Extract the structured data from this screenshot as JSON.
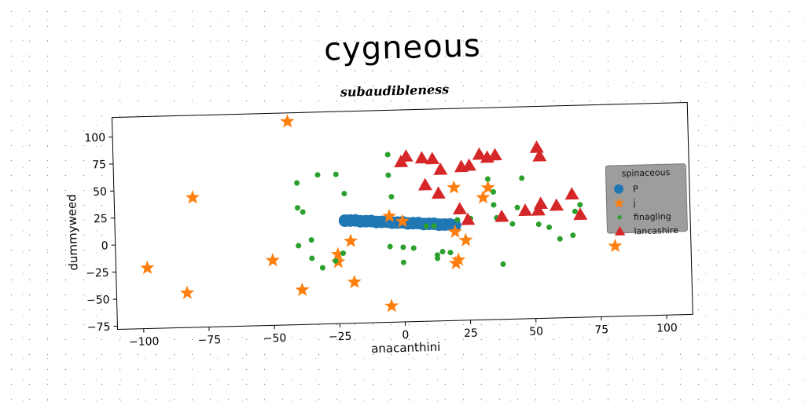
{
  "title": "cygneous",
  "subtitle": "subaudibleness",
  "chart_data": {
    "type": "scatter",
    "xlabel": "anacanthini",
    "ylabel": "dummyweed",
    "xlim": [
      -110,
      110
    ],
    "ylim": [
      -78,
      118
    ],
    "xticks": [
      -100,
      -75,
      -50,
      -25,
      0,
      25,
      50,
      75,
      100
    ],
    "yticks": [
      -75,
      -50,
      -25,
      0,
      25,
      50,
      75,
      100
    ],
    "xtick_labels": [
      "−100",
      "−75",
      "−50",
      "−25",
      "0",
      "25",
      "50",
      "75",
      "100"
    ],
    "ytick_labels": [
      "−75",
      "−50",
      "−25",
      "0",
      "25",
      "50",
      "75",
      "100"
    ],
    "grid": false,
    "legend": {
      "title": "spinaceous",
      "placement": "right"
    },
    "series": [
      {
        "name": "P",
        "marker": "circle-large",
        "color": "#1f77b4",
        "points": [
          [
            -22,
            17
          ],
          [
            -20,
            17
          ],
          [
            -18,
            17
          ],
          [
            -16,
            16
          ],
          [
            -14,
            16
          ],
          [
            -12,
            16
          ],
          [
            -10,
            15
          ],
          [
            -8,
            15
          ],
          [
            -6,
            15
          ],
          [
            -4,
            14
          ],
          [
            -2,
            14
          ],
          [
            0,
            14
          ],
          [
            2,
            13
          ],
          [
            4,
            13
          ],
          [
            6,
            13
          ],
          [
            8,
            12
          ],
          [
            10,
            12
          ],
          [
            12,
            12
          ],
          [
            14,
            11
          ],
          [
            16,
            11
          ],
          [
            18,
            11
          ],
          [
            20,
            10
          ]
        ]
      },
      {
        "name": "j",
        "marker": "star",
        "color": "#ff7f0e",
        "points": [
          [
            -43,
            110
          ],
          [
            -80,
            42
          ],
          [
            -98,
            -22
          ],
          [
            -83,
            -46
          ],
          [
            -50,
            -18
          ],
          [
            -39,
            -46
          ],
          [
            -25,
            -14
          ],
          [
            -25,
            -21
          ],
          [
            -19,
            -40
          ],
          [
            -20,
            -2
          ],
          [
            -5,
            20
          ],
          [
            -5,
            -63
          ],
          [
            0,
            15
          ],
          [
            20,
            4
          ],
          [
            20,
            -25
          ],
          [
            21,
            -22
          ],
          [
            24,
            -4
          ],
          [
            20,
            45
          ],
          [
            31,
            35
          ],
          [
            33,
            44
          ],
          [
            81,
            -13
          ]
        ]
      },
      {
        "name": "finagling",
        "marker": "circle-small",
        "color": "#2ca02c",
        "points": [
          [
            -40,
            53
          ],
          [
            -32,
            60
          ],
          [
            -25,
            60
          ],
          [
            -22,
            42
          ],
          [
            -40,
            30
          ],
          [
            -38,
            26
          ],
          [
            -40,
            -5
          ],
          [
            -35,
            0
          ],
          [
            -35,
            -17
          ],
          [
            -31,
            -26
          ],
          [
            -26,
            -20
          ],
          [
            -23,
            -13
          ],
          [
            -4,
            38
          ],
          [
            -5,
            77
          ],
          [
            -5,
            58
          ],
          [
            -5,
            -8
          ],
          [
            0,
            -9
          ],
          [
            0,
            -23
          ],
          [
            4,
            -10
          ],
          [
            9,
            10
          ],
          [
            12,
            10
          ],
          [
            13,
            -17
          ],
          [
            13,
            -20
          ],
          [
            15,
            -14
          ],
          [
            18,
            -15
          ],
          [
            33,
            52
          ],
          [
            35,
            40
          ],
          [
            35,
            28
          ],
          [
            36,
            16
          ],
          [
            38,
            -27
          ],
          [
            42,
            10
          ],
          [
            44,
            25
          ],
          [
            46,
            52
          ],
          [
            52,
            9
          ],
          [
            56,
            6
          ],
          [
            60,
            -5
          ],
          [
            65,
            -2
          ],
          [
            66,
            20
          ],
          [
            68,
            26
          ],
          [
            21,
            15
          ],
          [
            26,
            16
          ]
        ]
      },
      {
        "name": "lancashire",
        "marker": "triangle",
        "color": "#d62728",
        "points": [
          [
            0,
            70
          ],
          [
            2,
            75
          ],
          [
            8,
            73
          ],
          [
            12,
            72
          ],
          [
            15,
            62
          ],
          [
            9,
            48
          ],
          [
            14,
            40
          ],
          [
            23,
            64
          ],
          [
            26,
            65
          ],
          [
            30,
            75
          ],
          [
            33,
            72
          ],
          [
            36,
            74
          ],
          [
            22,
            25
          ],
          [
            25,
            15
          ],
          [
            38,
            17
          ],
          [
            47,
            22
          ],
          [
            52,
            22
          ],
          [
            53,
            28
          ],
          [
            59,
            26
          ],
          [
            65,
            36
          ],
          [
            68,
            17
          ],
          [
            52,
            80
          ],
          [
            53,
            72
          ]
        ]
      }
    ]
  }
}
